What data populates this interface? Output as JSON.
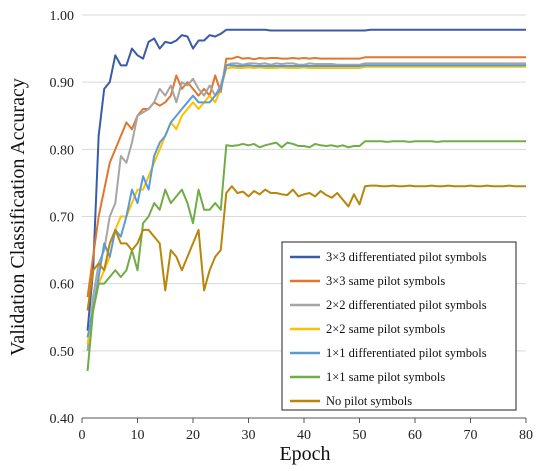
{
  "chart_data": {
    "type": "line",
    "xlabel": "Epoch",
    "ylabel": "Validation Classification Accuracy",
    "xlim": [
      0,
      80
    ],
    "ylim": [
      0.4,
      1.0
    ],
    "x_ticks": [
      "0",
      "10",
      "20",
      "30",
      "40",
      "50",
      "60",
      "70",
      "80"
    ],
    "y_ticks": [
      "0.40",
      "0.50",
      "0.60",
      "0.70",
      "0.80",
      "0.90",
      "1.00"
    ],
    "grid": "horizontal",
    "legend_position": "bottom-right",
    "x": [
      1,
      2,
      3,
      4,
      5,
      6,
      7,
      8,
      9,
      10,
      11,
      12,
      13,
      14,
      15,
      16,
      17,
      18,
      19,
      20,
      21,
      22,
      23,
      24,
      25,
      26,
      27,
      28,
      29,
      30,
      31,
      32,
      33,
      34,
      35,
      36,
      37,
      38,
      39,
      40,
      41,
      42,
      43,
      44,
      45,
      46,
      47,
      48,
      49,
      50,
      51,
      52,
      53,
      54,
      55,
      56,
      57,
      58,
      59,
      60,
      61,
      62,
      63,
      64,
      65,
      66,
      67,
      68,
      69,
      70,
      71,
      72,
      73,
      74,
      75,
      76,
      77,
      78,
      79,
      80
    ],
    "series": [
      {
        "name": "3×3 differentiated pilot symbols",
        "color": "#3a5ca8",
        "values": [
          0.53,
          0.62,
          0.82,
          0.89,
          0.9,
          0.94,
          0.925,
          0.925,
          0.95,
          0.94,
          0.935,
          0.96,
          0.965,
          0.95,
          0.96,
          0.958,
          0.962,
          0.97,
          0.968,
          0.95,
          0.962,
          0.962,
          0.97,
          0.968,
          0.972,
          0.978,
          0.978,
          0.978,
          0.978,
          0.978,
          0.978,
          0.978,
          0.978,
          0.977,
          0.977,
          0.977,
          0.977,
          0.977,
          0.977,
          0.977,
          0.977,
          0.977,
          0.977,
          0.977,
          0.977,
          0.977,
          0.977,
          0.977,
          0.977,
          0.977,
          0.977,
          0.978,
          0.978,
          0.978,
          0.978,
          0.978,
          0.978,
          0.978,
          0.978,
          0.978,
          0.978,
          0.978,
          0.978,
          0.978,
          0.978,
          0.978,
          0.978,
          0.978,
          0.978,
          0.978,
          0.978,
          0.978,
          0.978,
          0.978,
          0.978,
          0.978,
          0.978,
          0.978,
          0.978,
          0.978
        ]
      },
      {
        "name": "3×3 same pilot symbols",
        "color": "#e0772d",
        "values": [
          0.58,
          0.64,
          0.7,
          0.74,
          0.78,
          0.8,
          0.82,
          0.84,
          0.83,
          0.85,
          0.86,
          0.86,
          0.87,
          0.865,
          0.87,
          0.88,
          0.91,
          0.89,
          0.9,
          0.89,
          0.88,
          0.89,
          0.88,
          0.91,
          0.885,
          0.935,
          0.935,
          0.938,
          0.935,
          0.936,
          0.934,
          0.936,
          0.935,
          0.936,
          0.936,
          0.935,
          0.935,
          0.936,
          0.935,
          0.936,
          0.935,
          0.936,
          0.935,
          0.935,
          0.935,
          0.935,
          0.935,
          0.935,
          0.935,
          0.935,
          0.937,
          0.937,
          0.937,
          0.937,
          0.937,
          0.937,
          0.937,
          0.937,
          0.937,
          0.937,
          0.937,
          0.937,
          0.937,
          0.937,
          0.937,
          0.937,
          0.937,
          0.937,
          0.937,
          0.937,
          0.937,
          0.937,
          0.937,
          0.937,
          0.937,
          0.937,
          0.937,
          0.937,
          0.937,
          0.937
        ]
      },
      {
        "name": "2×2 differentiated pilot symbols",
        "color": "#a5a5a5",
        "values": [
          0.5,
          0.58,
          0.63,
          0.65,
          0.7,
          0.72,
          0.79,
          0.78,
          0.81,
          0.85,
          0.855,
          0.86,
          0.87,
          0.89,
          0.88,
          0.895,
          0.87,
          0.9,
          0.895,
          0.905,
          0.89,
          0.88,
          0.895,
          0.88,
          0.895,
          0.925,
          0.928,
          0.928,
          0.926,
          0.928,
          0.928,
          0.927,
          0.928,
          0.926,
          0.928,
          0.927,
          0.928,
          0.928,
          0.926,
          0.926,
          0.928,
          0.927,
          0.927,
          0.927,
          0.927,
          0.926,
          0.926,
          0.926,
          0.926,
          0.926,
          0.928,
          0.928,
          0.928,
          0.928,
          0.928,
          0.928,
          0.928,
          0.928,
          0.928,
          0.928,
          0.928,
          0.928,
          0.928,
          0.928,
          0.928,
          0.928,
          0.928,
          0.928,
          0.928,
          0.928,
          0.928,
          0.928,
          0.928,
          0.928,
          0.928,
          0.928,
          0.928,
          0.928,
          0.928,
          0.928
        ]
      },
      {
        "name": "2×2 same pilot symbols",
        "color": "#ffc000",
        "values": [
          0.51,
          0.56,
          0.6,
          0.62,
          0.64,
          0.68,
          0.7,
          0.7,
          0.72,
          0.74,
          0.74,
          0.76,
          0.78,
          0.8,
          0.82,
          0.84,
          0.83,
          0.85,
          0.86,
          0.87,
          0.86,
          0.87,
          0.88,
          0.87,
          0.89,
          0.92,
          0.922,
          0.921,
          0.921,
          0.922,
          0.921,
          0.922,
          0.921,
          0.921,
          0.921,
          0.922,
          0.921,
          0.921,
          0.921,
          0.922,
          0.921,
          0.921,
          0.921,
          0.921,
          0.921,
          0.921,
          0.921,
          0.921,
          0.921,
          0.921,
          0.923,
          0.923,
          0.923,
          0.923,
          0.923,
          0.923,
          0.923,
          0.923,
          0.923,
          0.923,
          0.923,
          0.923,
          0.923,
          0.923,
          0.923,
          0.923,
          0.923,
          0.923,
          0.923,
          0.923,
          0.923,
          0.923,
          0.923,
          0.923,
          0.923,
          0.923,
          0.923,
          0.923,
          0.923,
          0.923
        ]
      },
      {
        "name": "1×1 differentiated pilot symbols",
        "color": "#5b9bd5",
        "values": [
          0.52,
          0.56,
          0.61,
          0.66,
          0.64,
          0.68,
          0.67,
          0.7,
          0.74,
          0.72,
          0.76,
          0.74,
          0.79,
          0.81,
          0.82,
          0.84,
          0.85,
          0.86,
          0.87,
          0.88,
          0.87,
          0.87,
          0.87,
          0.88,
          0.89,
          0.925,
          0.925,
          0.924,
          0.924,
          0.925,
          0.924,
          0.924,
          0.924,
          0.924,
          0.924,
          0.924,
          0.924,
          0.924,
          0.924,
          0.924,
          0.924,
          0.924,
          0.924,
          0.924,
          0.924,
          0.924,
          0.924,
          0.924,
          0.924,
          0.924,
          0.925,
          0.925,
          0.925,
          0.925,
          0.925,
          0.925,
          0.925,
          0.925,
          0.925,
          0.925,
          0.925,
          0.925,
          0.925,
          0.925,
          0.925,
          0.925,
          0.925,
          0.925,
          0.925,
          0.925,
          0.925,
          0.925,
          0.925,
          0.925,
          0.925,
          0.925,
          0.925,
          0.925,
          0.925,
          0.925
        ]
      },
      {
        "name": "1×1 same pilot symbols",
        "color": "#70ad47",
        "values": [
          0.47,
          0.56,
          0.6,
          0.6,
          0.61,
          0.62,
          0.61,
          0.62,
          0.65,
          0.62,
          0.69,
          0.7,
          0.72,
          0.71,
          0.74,
          0.72,
          0.73,
          0.74,
          0.72,
          0.69,
          0.74,
          0.71,
          0.71,
          0.72,
          0.71,
          0.806,
          0.805,
          0.806,
          0.808,
          0.806,
          0.808,
          0.803,
          0.806,
          0.808,
          0.81,
          0.803,
          0.81,
          0.808,
          0.805,
          0.805,
          0.803,
          0.808,
          0.806,
          0.805,
          0.806,
          0.804,
          0.806,
          0.803,
          0.805,
          0.805,
          0.812,
          0.812,
          0.812,
          0.812,
          0.811,
          0.812,
          0.812,
          0.812,
          0.811,
          0.812,
          0.812,
          0.812,
          0.812,
          0.811,
          0.812,
          0.812,
          0.812,
          0.812,
          0.812,
          0.812,
          0.812,
          0.812,
          0.812,
          0.812,
          0.812,
          0.812,
          0.812,
          0.812,
          0.812,
          0.812
        ]
      },
      {
        "name": "No pilot symbols",
        "color": "#b8860b",
        "values": [
          0.56,
          0.62,
          0.63,
          0.62,
          0.66,
          0.68,
          0.66,
          0.66,
          0.65,
          0.66,
          0.68,
          0.68,
          0.67,
          0.66,
          0.59,
          0.65,
          0.64,
          0.62,
          0.64,
          0.66,
          0.68,
          0.59,
          0.62,
          0.64,
          0.65,
          0.735,
          0.745,
          0.735,
          0.737,
          0.73,
          0.738,
          0.733,
          0.74,
          0.735,
          0.735,
          0.733,
          0.732,
          0.74,
          0.73,
          0.733,
          0.735,
          0.73,
          0.738,
          0.732,
          0.728,
          0.735,
          0.725,
          0.715,
          0.733,
          0.718,
          0.745,
          0.746,
          0.746,
          0.745,
          0.745,
          0.746,
          0.745,
          0.745,
          0.746,
          0.745,
          0.745,
          0.745,
          0.746,
          0.745,
          0.745,
          0.746,
          0.745,
          0.745,
          0.745,
          0.746,
          0.745,
          0.745,
          0.746,
          0.745,
          0.745,
          0.745,
          0.746,
          0.745,
          0.745,
          0.745
        ]
      }
    ]
  }
}
